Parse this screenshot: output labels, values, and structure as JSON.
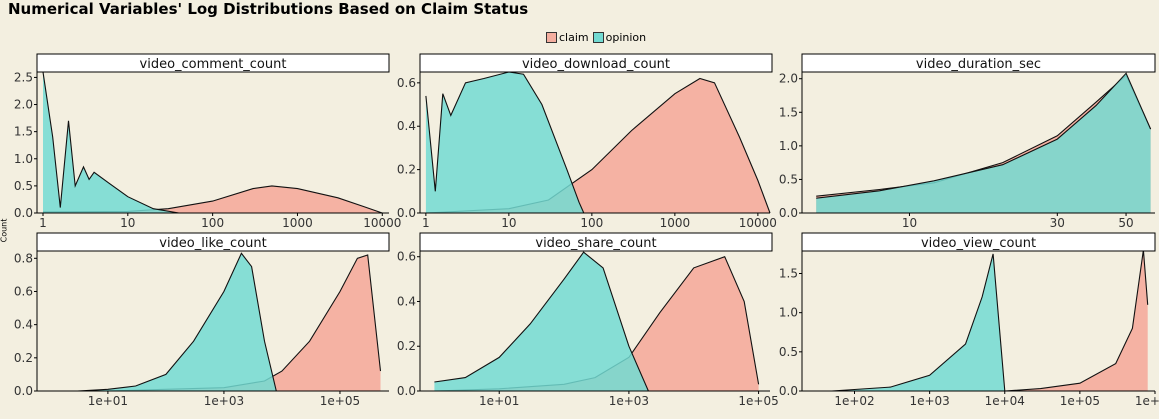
{
  "title": "Numerical Variables' Log Distributions Based on Claim Status",
  "y_axis_label": "Count",
  "colors": {
    "claim": "#f4ae9f",
    "opinion": "#72dad2",
    "background": "#f3efe0"
  },
  "legend": [
    {
      "label": "claim",
      "color": "#f4ae9f"
    },
    {
      "label": "opinion",
      "color": "#72dad2"
    }
  ],
  "chart_data": [
    {
      "type": "area",
      "title": "video_comment_count",
      "xscale": "log10",
      "xlim": [
        0.85,
        12000
      ],
      "ylim": [
        0,
        2.6
      ],
      "xticks": [
        [
          1,
          "1"
        ],
        [
          10,
          "10"
        ],
        [
          100,
          "100"
        ],
        [
          1000,
          "1000"
        ],
        [
          10000,
          "10000"
        ]
      ],
      "yticks": [
        0,
        0.5,
        1.0,
        1.5,
        2.0,
        2.5
      ],
      "series": [
        {
          "name": "claim",
          "points": [
            [
              1,
              0.02
            ],
            [
              10,
              0.03
            ],
            [
              30,
              0.08
            ],
            [
              100,
              0.22
            ],
            [
              300,
              0.45
            ],
            [
              500,
              0.5
            ],
            [
              1000,
              0.45
            ],
            [
              3000,
              0.28
            ],
            [
              6000,
              0.12
            ],
            [
              10000,
              0.0
            ]
          ]
        },
        {
          "name": "opinion",
          "points": [
            [
              1,
              2.6
            ],
            [
              1.3,
              1.4
            ],
            [
              1.6,
              0.1
            ],
            [
              2,
              1.7
            ],
            [
              2.4,
              0.5
            ],
            [
              3,
              0.85
            ],
            [
              3.5,
              0.62
            ],
            [
              4,
              0.75
            ],
            [
              6,
              0.55
            ],
            [
              10,
              0.3
            ],
            [
              20,
              0.08
            ],
            [
              40,
              0.0
            ]
          ]
        }
      ]
    },
    {
      "type": "area",
      "title": "video_download_count",
      "xscale": "log10",
      "xlim": [
        0.85,
        14000
      ],
      "ylim": [
        0,
        0.65
      ],
      "xticks": [
        [
          1,
          "1"
        ],
        [
          10,
          "10"
        ],
        [
          100,
          "100"
        ],
        [
          1000,
          "1000"
        ],
        [
          10000,
          "10000"
        ]
      ],
      "yticks": [
        0,
        0.2,
        0.4,
        0.6
      ],
      "series": [
        {
          "name": "claim",
          "points": [
            [
              1,
              0.0
            ],
            [
              10,
              0.02
            ],
            [
              30,
              0.06
            ],
            [
              100,
              0.2
            ],
            [
              300,
              0.38
            ],
            [
              1000,
              0.55
            ],
            [
              2000,
              0.62
            ],
            [
              3000,
              0.6
            ],
            [
              6000,
              0.35
            ],
            [
              10000,
              0.15
            ],
            [
              14000,
              0.0
            ]
          ]
        },
        {
          "name": "opinion",
          "points": [
            [
              1,
              0.54
            ],
            [
              1.3,
              0.1
            ],
            [
              1.6,
              0.55
            ],
            [
              2,
              0.45
            ],
            [
              3,
              0.6
            ],
            [
              5,
              0.62
            ],
            [
              10,
              0.65
            ],
            [
              15,
              0.64
            ],
            [
              25,
              0.5
            ],
            [
              50,
              0.2
            ],
            [
              70,
              0.05
            ],
            [
              80,
              0.0
            ]
          ]
        }
      ]
    },
    {
      "type": "area",
      "title": "video_duration_sec",
      "xscale": "log10",
      "xlim": [
        4.5,
        62
      ],
      "ylim": [
        0,
        2.1
      ],
      "xticks": [
        [
          10,
          "10"
        ],
        [
          30,
          "30"
        ],
        [
          50,
          "50"
        ]
      ],
      "yticks": [
        0,
        0.5,
        1.0,
        1.5,
        2.0
      ],
      "series": [
        {
          "name": "claim",
          "points": [
            [
              5,
              0.25
            ],
            [
              8,
              0.35
            ],
            [
              12,
              0.45
            ],
            [
              20,
              0.75
            ],
            [
              30,
              1.15
            ],
            [
              40,
              1.65
            ],
            [
              50,
              2.05
            ],
            [
              60,
              1.25
            ]
          ]
        },
        {
          "name": "opinion",
          "points": [
            [
              5,
              0.22
            ],
            [
              8,
              0.33
            ],
            [
              12,
              0.48
            ],
            [
              20,
              0.72
            ],
            [
              30,
              1.1
            ],
            [
              40,
              1.6
            ],
            [
              50,
              2.08
            ],
            [
              60,
              1.25
            ]
          ]
        }
      ]
    },
    {
      "type": "area",
      "title": "video_like_count",
      "xscale": "log10",
      "xlim": [
        0.6,
        700000
      ],
      "ylim": [
        0,
        0.85
      ],
      "xticks": [
        [
          10,
          "1e+01"
        ],
        [
          1000,
          "1e+03"
        ],
        [
          100000,
          "1e+05"
        ]
      ],
      "yticks": [
        0,
        0.2,
        0.4,
        0.6,
        0.8
      ],
      "series": [
        {
          "name": "claim",
          "points": [
            [
              10,
              0.0
            ],
            [
              100,
              0.01
            ],
            [
              1000,
              0.02
            ],
            [
              5000,
              0.06
            ],
            [
              10000,
              0.12
            ],
            [
              30000,
              0.3
            ],
            [
              100000,
              0.6
            ],
            [
              200000,
              0.8
            ],
            [
              300000,
              0.82
            ],
            [
              500000,
              0.12
            ]
          ]
        },
        {
          "name": "opinion",
          "points": [
            [
              3,
              0.0
            ],
            [
              10,
              0.01
            ],
            [
              30,
              0.03
            ],
            [
              100,
              0.1
            ],
            [
              300,
              0.3
            ],
            [
              1000,
              0.6
            ],
            [
              2000,
              0.83
            ],
            [
              3000,
              0.75
            ],
            [
              5000,
              0.3
            ],
            [
              8000,
              0.0
            ]
          ]
        }
      ]
    },
    {
      "type": "area",
      "title": "video_share_count",
      "xscale": "log10",
      "xlim": [
        0.6,
        150000
      ],
      "ylim": [
        0,
        0.63
      ],
      "xticks": [
        [
          10,
          "1e+01"
        ],
        [
          1000,
          "1e+03"
        ],
        [
          100000,
          "1e+05"
        ]
      ],
      "yticks": [
        0,
        0.2,
        0.4,
        0.6
      ],
      "series": [
        {
          "name": "claim",
          "points": [
            [
              1,
              0.0
            ],
            [
              10,
              0.01
            ],
            [
              100,
              0.03
            ],
            [
              300,
              0.06
            ],
            [
              1000,
              0.15
            ],
            [
              3000,
              0.35
            ],
            [
              10000,
              0.55
            ],
            [
              30000,
              0.6
            ],
            [
              60000,
              0.4
            ],
            [
              100000,
              0.03
            ]
          ]
        },
        {
          "name": "opinion",
          "points": [
            [
              1,
              0.04
            ],
            [
              3,
              0.06
            ],
            [
              10,
              0.15
            ],
            [
              30,
              0.3
            ],
            [
              100,
              0.5
            ],
            [
              200,
              0.62
            ],
            [
              400,
              0.55
            ],
            [
              1000,
              0.2
            ],
            [
              2000,
              0.0
            ]
          ]
        }
      ]
    },
    {
      "type": "area",
      "title": "video_view_count",
      "xscale": "log10",
      "xlim": [
        20,
        1000000
      ],
      "ylim": [
        0,
        1.8
      ],
      "xticks": [
        [
          100,
          "1e+02"
        ],
        [
          1000,
          "1e+03"
        ],
        [
          10000,
          "1e+04"
        ],
        [
          100000,
          "1e+05"
        ],
        [
          1000000,
          "1e+06"
        ]
      ],
      "yticks": [
        0,
        0.5,
        1.0,
        1.5
      ],
      "series": [
        {
          "name": "claim",
          "points": [
            [
              10000,
              0.0
            ],
            [
              30000,
              0.03
            ],
            [
              100000,
              0.1
            ],
            [
              300000,
              0.35
            ],
            [
              500000,
              0.8
            ],
            [
              700000,
              1.8
            ],
            [
              800000,
              1.1
            ]
          ]
        },
        {
          "name": "opinion",
          "points": [
            [
              50,
              0.0
            ],
            [
              300,
              0.05
            ],
            [
              1000,
              0.2
            ],
            [
              3000,
              0.6
            ],
            [
              5000,
              1.2
            ],
            [
              7000,
              1.75
            ],
            [
              10000,
              0.0
            ]
          ]
        }
      ]
    }
  ]
}
